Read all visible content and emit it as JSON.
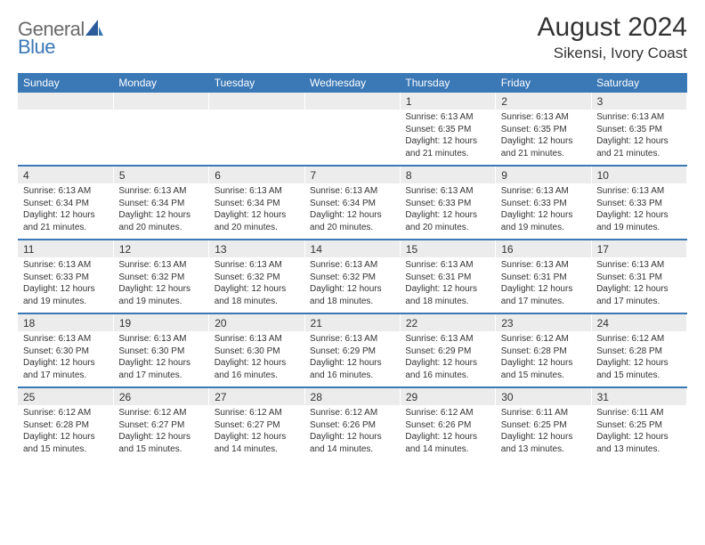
{
  "logo": {
    "general": "General",
    "blue": "Blue"
  },
  "title": "August 2024",
  "location": "Sikensi, Ivory Coast",
  "colors": {
    "header_bg": "#3a78b6",
    "daterow_bg": "#ececec",
    "text": "#333333",
    "logo_gray": "#6b6b6b",
    "logo_blue": "#3a78b6"
  },
  "dayNames": [
    "Sunday",
    "Monday",
    "Tuesday",
    "Wednesday",
    "Thursday",
    "Friday",
    "Saturday"
  ],
  "weeks": [
    [
      null,
      null,
      null,
      null,
      {
        "d": "1",
        "sr": "6:13 AM",
        "ss": "6:35 PM",
        "dl": "12 hours and 21 minutes."
      },
      {
        "d": "2",
        "sr": "6:13 AM",
        "ss": "6:35 PM",
        "dl": "12 hours and 21 minutes."
      },
      {
        "d": "3",
        "sr": "6:13 AM",
        "ss": "6:35 PM",
        "dl": "12 hours and 21 minutes."
      }
    ],
    [
      {
        "d": "4",
        "sr": "6:13 AM",
        "ss": "6:34 PM",
        "dl": "12 hours and 21 minutes."
      },
      {
        "d": "5",
        "sr": "6:13 AM",
        "ss": "6:34 PM",
        "dl": "12 hours and 20 minutes."
      },
      {
        "d": "6",
        "sr": "6:13 AM",
        "ss": "6:34 PM",
        "dl": "12 hours and 20 minutes."
      },
      {
        "d": "7",
        "sr": "6:13 AM",
        "ss": "6:34 PM",
        "dl": "12 hours and 20 minutes."
      },
      {
        "d": "8",
        "sr": "6:13 AM",
        "ss": "6:33 PM",
        "dl": "12 hours and 20 minutes."
      },
      {
        "d": "9",
        "sr": "6:13 AM",
        "ss": "6:33 PM",
        "dl": "12 hours and 19 minutes."
      },
      {
        "d": "10",
        "sr": "6:13 AM",
        "ss": "6:33 PM",
        "dl": "12 hours and 19 minutes."
      }
    ],
    [
      {
        "d": "11",
        "sr": "6:13 AM",
        "ss": "6:33 PM",
        "dl": "12 hours and 19 minutes."
      },
      {
        "d": "12",
        "sr": "6:13 AM",
        "ss": "6:32 PM",
        "dl": "12 hours and 19 minutes."
      },
      {
        "d": "13",
        "sr": "6:13 AM",
        "ss": "6:32 PM",
        "dl": "12 hours and 18 minutes."
      },
      {
        "d": "14",
        "sr": "6:13 AM",
        "ss": "6:32 PM",
        "dl": "12 hours and 18 minutes."
      },
      {
        "d": "15",
        "sr": "6:13 AM",
        "ss": "6:31 PM",
        "dl": "12 hours and 18 minutes."
      },
      {
        "d": "16",
        "sr": "6:13 AM",
        "ss": "6:31 PM",
        "dl": "12 hours and 17 minutes."
      },
      {
        "d": "17",
        "sr": "6:13 AM",
        "ss": "6:31 PM",
        "dl": "12 hours and 17 minutes."
      }
    ],
    [
      {
        "d": "18",
        "sr": "6:13 AM",
        "ss": "6:30 PM",
        "dl": "12 hours and 17 minutes."
      },
      {
        "d": "19",
        "sr": "6:13 AM",
        "ss": "6:30 PM",
        "dl": "12 hours and 17 minutes."
      },
      {
        "d": "20",
        "sr": "6:13 AM",
        "ss": "6:30 PM",
        "dl": "12 hours and 16 minutes."
      },
      {
        "d": "21",
        "sr": "6:13 AM",
        "ss": "6:29 PM",
        "dl": "12 hours and 16 minutes."
      },
      {
        "d": "22",
        "sr": "6:13 AM",
        "ss": "6:29 PM",
        "dl": "12 hours and 16 minutes."
      },
      {
        "d": "23",
        "sr": "6:12 AM",
        "ss": "6:28 PM",
        "dl": "12 hours and 15 minutes."
      },
      {
        "d": "24",
        "sr": "6:12 AM",
        "ss": "6:28 PM",
        "dl": "12 hours and 15 minutes."
      }
    ],
    [
      {
        "d": "25",
        "sr": "6:12 AM",
        "ss": "6:28 PM",
        "dl": "12 hours and 15 minutes."
      },
      {
        "d": "26",
        "sr": "6:12 AM",
        "ss": "6:27 PM",
        "dl": "12 hours and 15 minutes."
      },
      {
        "d": "27",
        "sr": "6:12 AM",
        "ss": "6:27 PM",
        "dl": "12 hours and 14 minutes."
      },
      {
        "d": "28",
        "sr": "6:12 AM",
        "ss": "6:26 PM",
        "dl": "12 hours and 14 minutes."
      },
      {
        "d": "29",
        "sr": "6:12 AM",
        "ss": "6:26 PM",
        "dl": "12 hours and 14 minutes."
      },
      {
        "d": "30",
        "sr": "6:11 AM",
        "ss": "6:25 PM",
        "dl": "12 hours and 13 minutes."
      },
      {
        "d": "31",
        "sr": "6:11 AM",
        "ss": "6:25 PM",
        "dl": "12 hours and 13 minutes."
      }
    ]
  ],
  "labels": {
    "sunrise": "Sunrise: ",
    "sunset": "Sunset: ",
    "daylight": "Daylight: "
  }
}
